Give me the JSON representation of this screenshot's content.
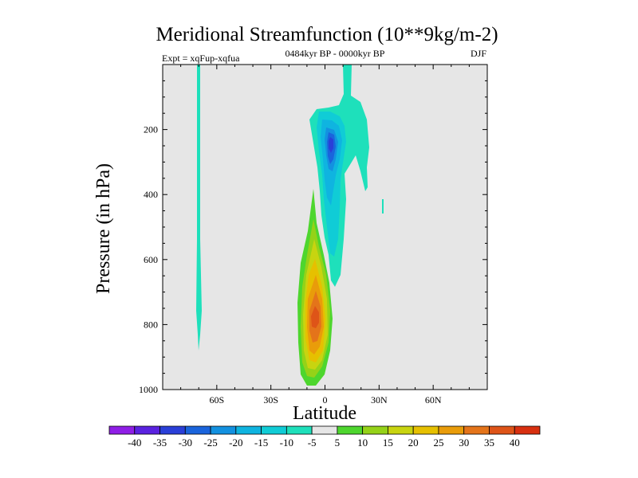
{
  "chart_data": {
    "type": "contour",
    "title": "Meridional Streamfunction (10**9kg/m-2)",
    "left_annotation": "Expt = xqFup-xqfua",
    "center_annotation": "0484kyr BP - 0000kyr BP",
    "right_annotation": "DJF",
    "xlabel": "Latitude",
    "ylabel": "Pressure (in hPa)",
    "xlim": [
      -90,
      90
    ],
    "ylim": [
      0,
      1000
    ],
    "y_inverted": true,
    "x_ticks": [
      {
        "value": -60,
        "label": "60S"
      },
      {
        "value": -30,
        "label": "30S"
      },
      {
        "value": 0,
        "label": "0"
      },
      {
        "value": 30,
        "label": "30N"
      },
      {
        "value": 60,
        "label": "60N"
      }
    ],
    "y_ticks": [
      {
        "value": 200,
        "label": "200"
      },
      {
        "value": 400,
        "label": "400"
      },
      {
        "value": 600,
        "label": "600"
      },
      {
        "value": 800,
        "label": "800"
      },
      {
        "value": 1000,
        "label": "1000"
      }
    ],
    "background_color": "#e6e6e6",
    "contour_levels": [
      -40,
      -35,
      -30,
      -25,
      -20,
      -15,
      -10,
      -5,
      5,
      10,
      15,
      20,
      25,
      30,
      35,
      40
    ],
    "colorbar_labels": [
      "-40",
      "-35",
      "-30",
      "-25",
      "-20",
      "-15",
      "-10",
      "-5",
      "5",
      "10",
      "15",
      "20",
      "25",
      "30",
      "35",
      "40"
    ],
    "colorbar_colors": [
      "#8f1ee6",
      "#5a22e0",
      "#2a3fd8",
      "#1a64dc",
      "#1391e0",
      "#0fb4e0",
      "#10ccd6",
      "#1ee0bb",
      "#e6e6e6",
      "#4ed62e",
      "#95d218",
      "#c8d410",
      "#e6c000",
      "#e99c0a",
      "#e4741a",
      "#de5418",
      "#d83010"
    ],
    "features": [
      {
        "name": "negative-cell",
        "lat_range": [
          -8,
          26
        ],
        "p_range": [
          0,
          690
        ],
        "min_value": -30,
        "core_lat": 5,
        "core_p": 250
      },
      {
        "name": "positive-cell",
        "lat_range": [
          -12,
          5
        ],
        "p_range": [
          380,
          980
        ],
        "max_value": 35,
        "core_lat": -5,
        "core_p": 780
      },
      {
        "name": "southern-strip",
        "lat_range": [
          -70,
          -68
        ],
        "p_range": [
          0,
          880
        ],
        "value": -5
      }
    ]
  }
}
